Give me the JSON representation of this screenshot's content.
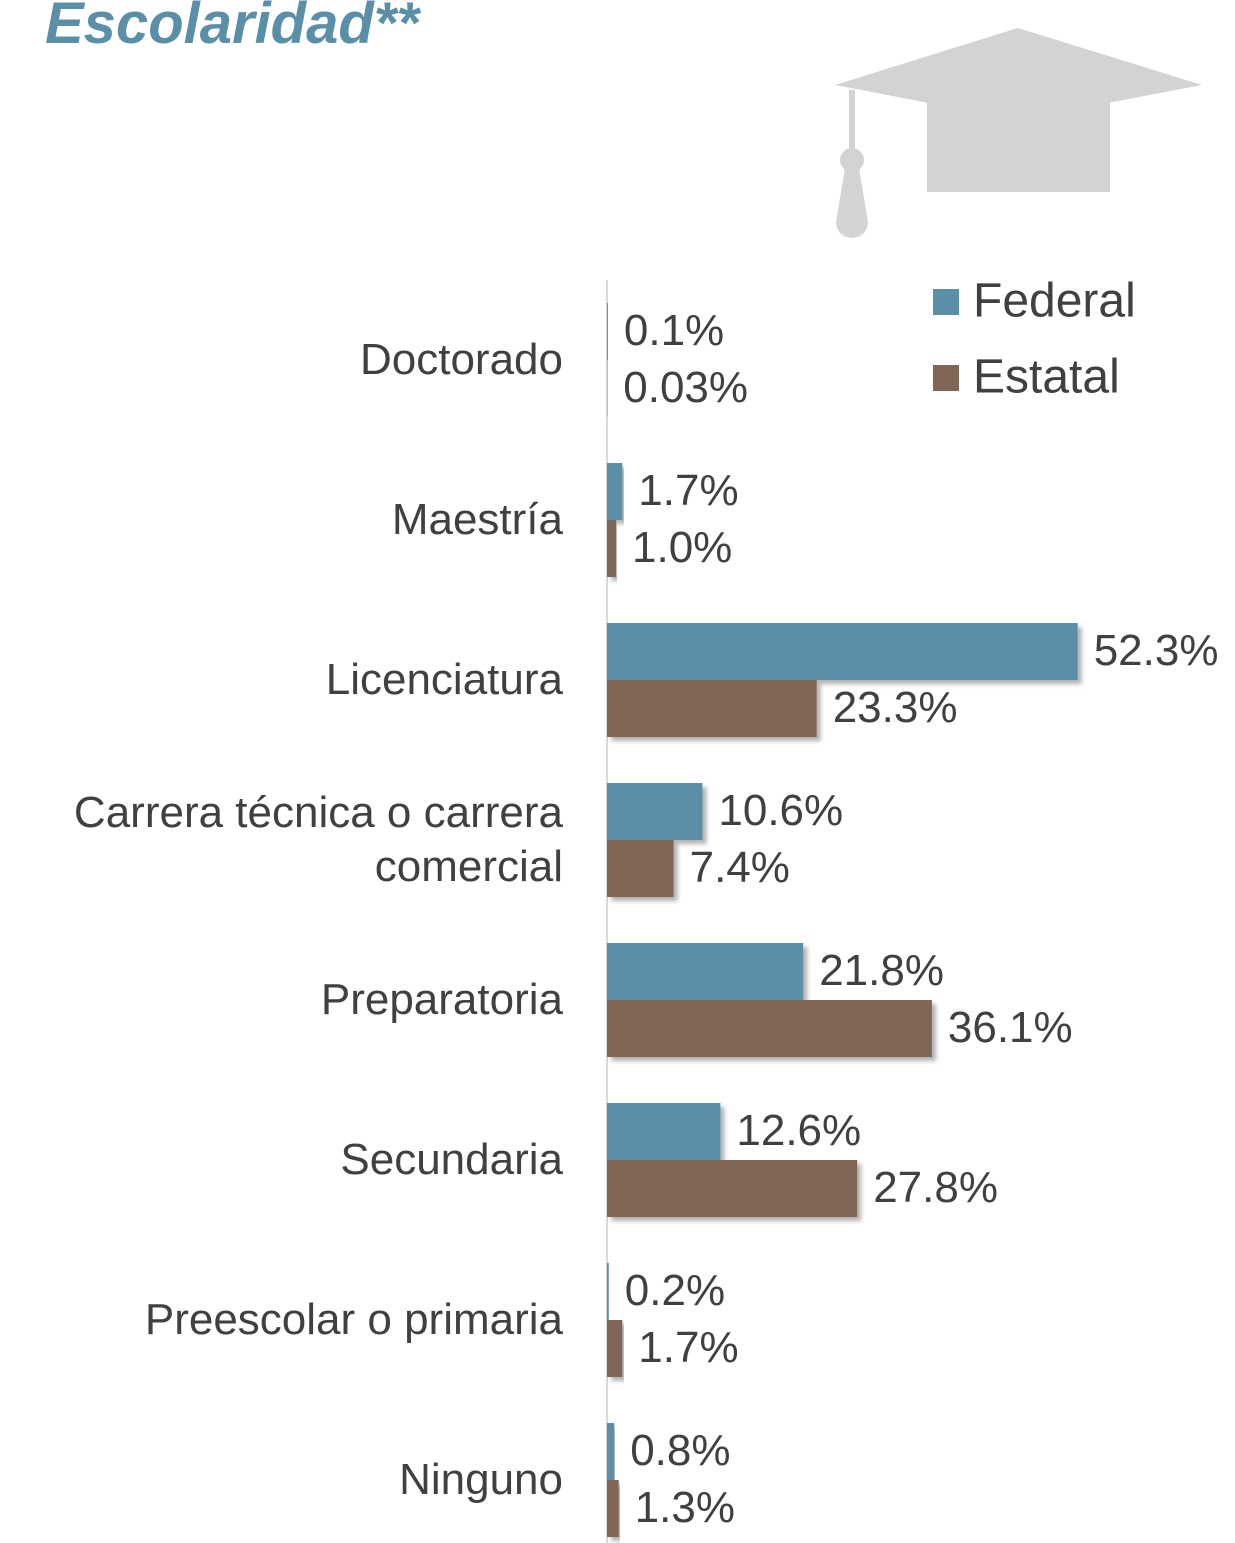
{
  "chart_data": {
    "type": "bar",
    "orientation": "horizontal",
    "title": "Escolaridad**",
    "categories": [
      "Doctorado",
      "Maestría",
      "Licenciatura",
      "Carrera técnica o carrera comercial",
      "Preparatoria",
      "Secundaria",
      "Preescolar o primaria",
      "Ninguno"
    ],
    "series": [
      {
        "name": "Federal",
        "color": "#5b8fa7",
        "values": [
          0.1,
          1.7,
          52.3,
          10.6,
          21.8,
          12.6,
          0.2,
          0.8
        ],
        "value_labels": [
          "0.1%",
          "1.7%",
          "52.3%",
          "10.6%",
          "21.8%",
          "12.6%",
          "0.2%",
          "0.8%"
        ]
      },
      {
        "name": "Estatal",
        "color": "#7f6656",
        "values": [
          0.03,
          1.0,
          23.3,
          7.4,
          36.1,
          27.8,
          1.7,
          1.3
        ],
        "value_labels": [
          "0.03%",
          "1.0%",
          "23.3%",
          "7.4%",
          "36.1%",
          "27.8%",
          "1.7%",
          "1.3%"
        ]
      }
    ],
    "legend": "upper right"
  }
}
